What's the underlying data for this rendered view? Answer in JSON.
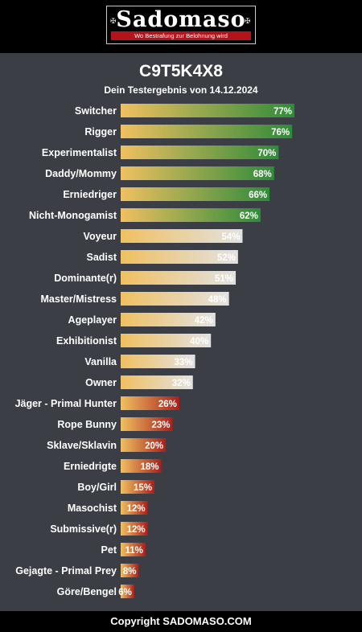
{
  "logo": {
    "word": "Sadomaso",
    "tagline": "Wo Bestrafung zur Belohnung wird"
  },
  "header": {
    "title": "C9T5K4X8",
    "subtitle": "Dein Testergebnis von 14.12.2024"
  },
  "footer": {
    "copyright": "Copyright SADOMASO.COM"
  },
  "colors": {
    "background": "#3b3e44",
    "bar_start": "#f0c060",
    "green": "#2e8b3a",
    "grey": "#e2e2e2",
    "red": "#a8201c"
  },
  "chart_data": {
    "type": "bar",
    "orientation": "horizontal",
    "value_suffix": "%",
    "xlim": [
      0,
      100
    ],
    "categories": [
      "Switcher",
      "Rigger",
      "Experimentalist",
      "Daddy/Mommy",
      "Erniedriger",
      "Nicht-Monogamist",
      "Voyeur",
      "Sadist",
      "Dominante(r)",
      "Master/Mistress",
      "Ageplayer",
      "Exhibitionist",
      "Vanilla",
      "Owner",
      "Jäger - Primal Hunter",
      "Rope Bunny",
      "Sklave/Sklavin",
      "Erniedrigte",
      "Boy/Girl",
      "Masochist",
      "Submissive(r)",
      "Pet",
      "Gejagte - Primal Prey",
      "Göre/Bengel"
    ],
    "values": [
      77,
      76,
      70,
      68,
      66,
      62,
      54,
      52,
      51,
      48,
      42,
      40,
      33,
      32,
      26,
      23,
      20,
      18,
      15,
      12,
      12,
      11,
      8,
      6
    ],
    "labels": [
      "77%",
      "76%",
      "70%",
      "68%",
      "66%",
      "62%",
      "54%",
      "52%",
      "51%",
      "48%",
      "42%",
      "40%",
      "33%",
      "32%",
      "26%",
      "23%",
      "20%",
      "18%",
      "15%",
      "12%",
      "12%",
      "11%",
      "8%",
      "6%"
    ]
  }
}
